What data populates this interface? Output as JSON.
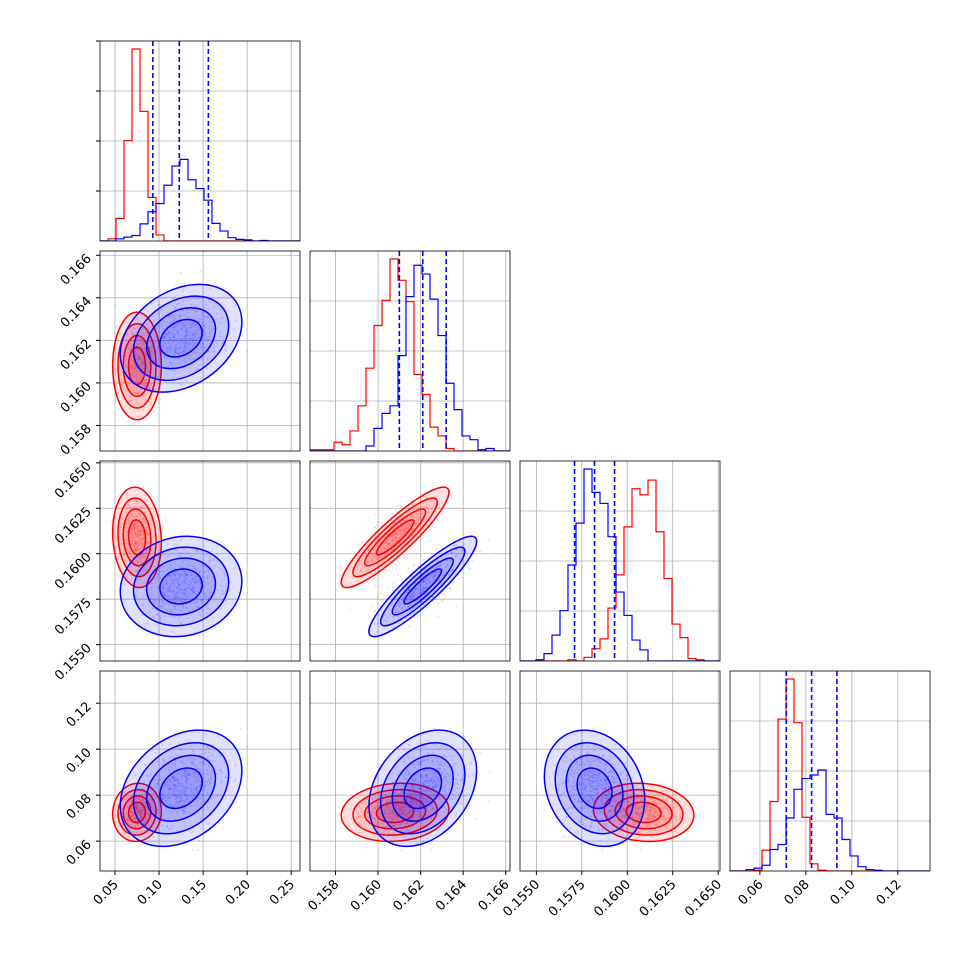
{
  "chart_data": {
    "type": "corner",
    "description_free": true,
    "params": [
      {
        "ticks": [
          "0.05",
          "0.10",
          "0.15",
          "0.20",
          "0.25"
        ],
        "tick_values": [
          0.05,
          0.1,
          0.15,
          0.2,
          0.25
        ],
        "range": [
          0.033,
          0.26
        ]
      },
      {
        "ticks": [
          "0.158",
          "0.160",
          "0.162",
          "0.164",
          "0.166"
        ],
        "tick_values": [
          0.158,
          0.16,
          0.162,
          0.164,
          0.166
        ],
        "range": [
          0.1568,
          0.1662
        ]
      },
      {
        "ticks": [
          "0.1550",
          "0.1575",
          "0.1600",
          "0.1625",
          "0.1650"
        ],
        "tick_values": [
          0.155,
          0.1575,
          0.16,
          0.1625,
          0.165
        ],
        "range": [
          0.1541,
          0.1651
        ]
      },
      {
        "ticks": [
          "0.06",
          "0.08",
          "0.10",
          "0.12"
        ],
        "tick_values": [
          0.06,
          0.08,
          0.1,
          0.12
        ],
        "range": [
          0.047,
          0.134
        ]
      }
    ],
    "series": [
      {
        "color": "#ff0000",
        "mean": [
          0.075,
          0.1608,
          0.1609,
          0.0725
        ],
        "std": [
          0.012,
          0.0011,
          0.0012,
          0.0055
        ],
        "corr": [
          [
            1,
            0,
            -0.1,
            0.05
          ],
          [
            0,
            1,
            0.9,
            0.1
          ],
          [
            -0.1,
            0.9,
            1,
            -0.1
          ],
          [
            0.05,
            0.1,
            -0.1,
            1
          ]
        ]
      },
      {
        "color": "#0000ff",
        "mean": [
          0.125,
          0.1621,
          0.1582,
          0.083
        ],
        "std": [
          0.03,
          0.0011,
          0.0012,
          0.011
        ],
        "corr": [
          [
            1,
            0.3,
            0.1,
            0.3
          ],
          [
            0.3,
            1,
            0.9,
            0.3
          ],
          [
            0.1,
            0.9,
            1,
            -0.2
          ],
          [
            0.3,
            0.3,
            -0.2,
            1
          ]
        ]
      }
    ],
    "quantile_lines": {
      "color": "#0000ff",
      "style": "dashed",
      "values": [
        [
          0.093,
          0.123,
          0.156
        ],
        [
          0.161,
          0.1621,
          0.1632
        ],
        [
          0.1571,
          0.1582,
          0.1593
        ],
        [
          0.0715,
          0.0825,
          0.0935
        ]
      ]
    },
    "grid": true
  }
}
